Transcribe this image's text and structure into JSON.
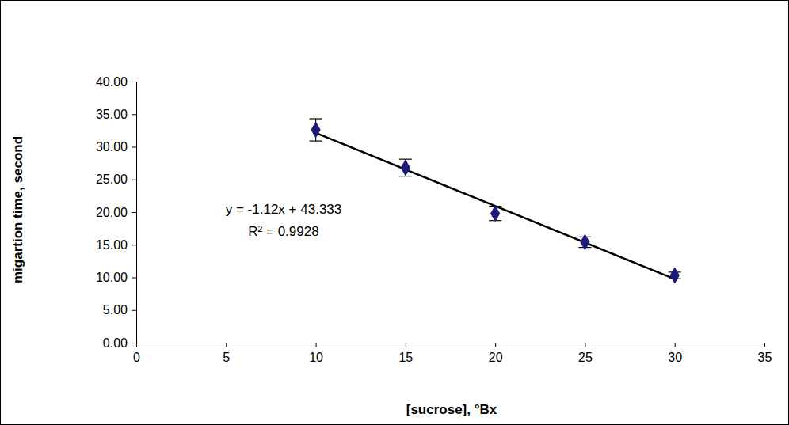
{
  "chart_data": {
    "type": "scatter",
    "x_label": "[sucrose], °Bx",
    "y_label": "migartion time, second",
    "annotations": [
      "y = -1.12x + 43.333",
      "R² = 0.9928"
    ],
    "xlim": [
      0,
      35
    ],
    "xticks": [
      0,
      5,
      10,
      15,
      20,
      25,
      30,
      35
    ],
    "ylim": [
      0,
      40
    ],
    "yticks": [
      {
        "value": 0,
        "label": "0.00"
      },
      {
        "value": 5,
        "label": "5.00"
      },
      {
        "value": 10,
        "label": "10.00"
      },
      {
        "value": 15,
        "label": "15.00"
      },
      {
        "value": 20,
        "label": "20.00"
      },
      {
        "value": 25,
        "label": "25.00"
      },
      {
        "value": 30,
        "label": "30.00"
      },
      {
        "value": 35,
        "label": "35.00"
      },
      {
        "value": 40,
        "label": "40.00"
      }
    ],
    "grid": false,
    "series": [
      {
        "x": [
          10,
          15,
          20,
          25,
          30
        ],
        "values": [
          32.6,
          26.8,
          19.8,
          15.4,
          10.3
        ],
        "errors": [
          1.7,
          1.3,
          1.1,
          0.8,
          0.5
        ],
        "color": "#1c1c78",
        "marker": "diamond"
      }
    ],
    "trendline": {
      "x": [
        10,
        30
      ],
      "values": [
        32.133,
        9.733
      ],
      "color": "#000000",
      "line_style": "solid"
    }
  }
}
